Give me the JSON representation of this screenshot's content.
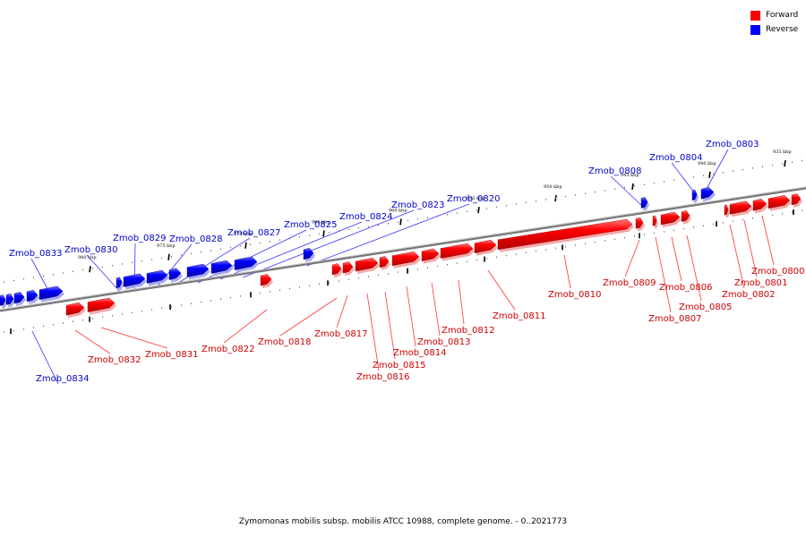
{
  "legend": [
    {
      "label": "Forward",
      "color": "#ff0000"
    },
    {
      "label": "Reverse",
      "color": "#0000ff"
    }
  ],
  "caption": "Zymomonas mobilis subsp. mobilis ATCC 10988, complete genome. - 0..2021773",
  "ticks": [
    "935 kbp",
    "940 kbp",
    "945 kbp",
    "950 kbp",
    "955 kbp",
    "960 kbp",
    "965 kbp",
    "970 kbp",
    "975 kbp",
    "980 kbp"
  ],
  "genes_reverse": [
    "Zmob_0803",
    "Zmob_0804",
    "Zmob_0808",
    "Zmob_0820",
    "Zmob_0823",
    "Zmob_0824",
    "Zmob_0825",
    "Zmob_0827",
    "Zmob_0828",
    "Zmob_0829",
    "Zmob_0830",
    "Zmob_0833",
    "Zmob_0834"
  ],
  "genes_forward": [
    "Zmob_0800",
    "Zmob_0801",
    "Zmob_0802",
    "Zmob_0805",
    "Zmob_0806",
    "Zmob_0807",
    "Zmob_0809",
    "Zmob_0810",
    "Zmob_0811",
    "Zmob_0812",
    "Zmob_0813",
    "Zmob_0814",
    "Zmob_0815",
    "Zmob_0816",
    "Zmob_0817",
    "Zmob_0818",
    "Zmob_0822",
    "Zmob_0831",
    "Zmob_0832"
  ]
}
